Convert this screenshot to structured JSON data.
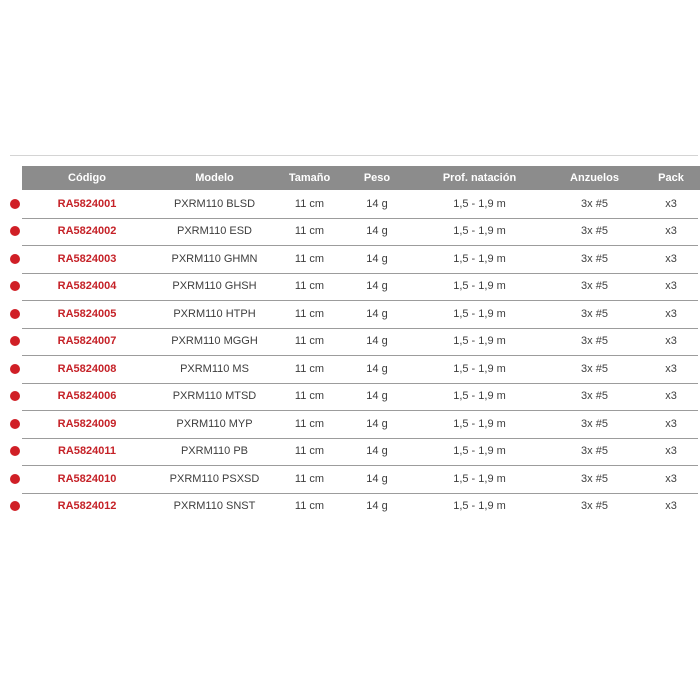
{
  "colors": {
    "header_bg": "#8c8c8c",
    "header_text": "#ffffff",
    "code_red": "#c52127",
    "dot_red": "#d01f26",
    "body_text": "#3d3d3d",
    "separator": "#9c9c9c",
    "top_rule": "#d4d4d4"
  },
  "table": {
    "columns": [
      {
        "key": "codigo",
        "label": "Código"
      },
      {
        "key": "modelo",
        "label": "Modelo"
      },
      {
        "key": "tamano",
        "label": "Tamaño"
      },
      {
        "key": "peso",
        "label": "Peso"
      },
      {
        "key": "prof_natacion",
        "label": "Prof. natación"
      },
      {
        "key": "anzuelos",
        "label": "Anzuelos"
      },
      {
        "key": "pack",
        "label": "Pack"
      }
    ],
    "row_indicator": "red-dot",
    "rows": [
      {
        "codigo": "RA5824001",
        "modelo": "PXRM110 BLSD",
        "tamano": "11 cm",
        "peso": "14 g",
        "prof_natacion": "1,5 - 1,9 m",
        "anzuelos": "3x #5",
        "pack": "x3"
      },
      {
        "codigo": "RA5824002",
        "modelo": "PXRM110 ESD",
        "tamano": "11 cm",
        "peso": "14 g",
        "prof_natacion": "1,5 - 1,9 m",
        "anzuelos": "3x #5",
        "pack": "x3"
      },
      {
        "codigo": "RA5824003",
        "modelo": "PXRM110 GHMN",
        "tamano": "11 cm",
        "peso": "14 g",
        "prof_natacion": "1,5 - 1,9 m",
        "anzuelos": "3x #5",
        "pack": "x3"
      },
      {
        "codigo": "RA5824004",
        "modelo": "PXRM110 GHSH",
        "tamano": "11 cm",
        "peso": "14 g",
        "prof_natacion": "1,5 - 1,9 m",
        "anzuelos": "3x #5",
        "pack": "x3"
      },
      {
        "codigo": "RA5824005",
        "modelo": "PXRM110 HTPH",
        "tamano": "11 cm",
        "peso": "14 g",
        "prof_natacion": "1,5 - 1,9 m",
        "anzuelos": "3x #5",
        "pack": "x3"
      },
      {
        "codigo": "RA5824007",
        "modelo": "PXRM110 MGGH",
        "tamano": "11 cm",
        "peso": "14 g",
        "prof_natacion": "1,5 - 1,9 m",
        "anzuelos": "3x #5",
        "pack": "x3"
      },
      {
        "codigo": "RA5824008",
        "modelo": "PXRM110 MS",
        "tamano": "11 cm",
        "peso": "14 g",
        "prof_natacion": "1,5 - 1,9 m",
        "anzuelos": "3x #5",
        "pack": "x3"
      },
      {
        "codigo": "RA5824006",
        "modelo": "PXRM110 MTSD",
        "tamano": "11 cm",
        "peso": "14 g",
        "prof_natacion": "1,5 - 1,9 m",
        "anzuelos": "3x #5",
        "pack": "x3"
      },
      {
        "codigo": "RA5824009",
        "modelo": "PXRM110 MYP",
        "tamano": "11 cm",
        "peso": "14 g",
        "prof_natacion": "1,5 - 1,9 m",
        "anzuelos": "3x #5",
        "pack": "x3"
      },
      {
        "codigo": "RA5824011",
        "modelo": "PXRM110 PB",
        "tamano": "11 cm",
        "peso": "14 g",
        "prof_natacion": "1,5 - 1,9 m",
        "anzuelos": "3x #5",
        "pack": "x3"
      },
      {
        "codigo": "RA5824010",
        "modelo": "PXRM110 PSXSD",
        "tamano": "11 cm",
        "peso": "14 g",
        "prof_natacion": "1,5 - 1,9 m",
        "anzuelos": "3x #5",
        "pack": "x3"
      },
      {
        "codigo": "RA5824012",
        "modelo": "PXRM110 SNST",
        "tamano": "11 cm",
        "peso": "14 g",
        "prof_natacion": "1,5 - 1,9 m",
        "anzuelos": "3x #5",
        "pack": "x3"
      }
    ]
  }
}
